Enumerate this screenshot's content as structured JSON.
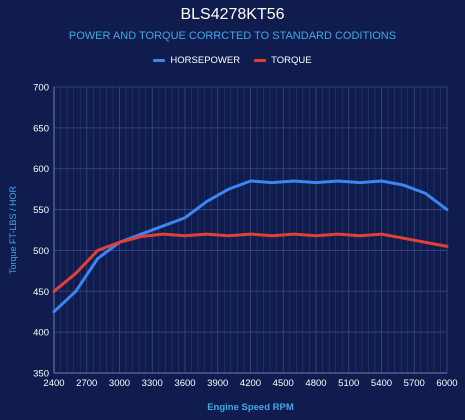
{
  "colors": {
    "background": "#0f1c4d",
    "horsepower": "#3a86f2",
    "torque": "#e0403a",
    "subtitle": "#3fa9e8",
    "axis_title": "#3fa9e8",
    "grid": "#3a4a80"
  },
  "chart_data": {
    "type": "line",
    "title": "BLS4278KT56",
    "subtitle": "POWER AND TORQUE CORRCTED TO STANDARD CODITIONS",
    "xlabel": "Engine Speed RPM",
    "ylabel": "Torque FT-LBS / HOR",
    "legend_position": "top-center",
    "grid": true,
    "xlim": [
      2400,
      6000
    ],
    "ylim": [
      350,
      700
    ],
    "x_ticks": [
      2400,
      2700,
      3000,
      3300,
      3600,
      3900,
      4200,
      4500,
      4800,
      5100,
      5400,
      5700,
      6000
    ],
    "y_ticks": [
      350,
      400,
      450,
      500,
      550,
      600,
      650,
      700
    ],
    "x": [
      2400,
      2600,
      2800,
      3000,
      3200,
      3400,
      3600,
      3800,
      4000,
      4200,
      4400,
      4600,
      4800,
      5000,
      5200,
      5400,
      5600,
      5800,
      6000
    ],
    "series": [
      {
        "name": "HORSEPOWER",
        "color": "#3a86f2",
        "values": [
          425,
          450,
          490,
          510,
          520,
          530,
          540,
          560,
          575,
          585,
          583,
          585,
          583,
          585,
          583,
          585,
          580,
          570,
          550
        ]
      },
      {
        "name": "TORQUE",
        "color": "#e0403a",
        "values": [
          450,
          472,
          500,
          510,
          517,
          520,
          518,
          520,
          518,
          520,
          518,
          520,
          518,
          520,
          518,
          520,
          515,
          510,
          505
        ]
      }
    ]
  }
}
